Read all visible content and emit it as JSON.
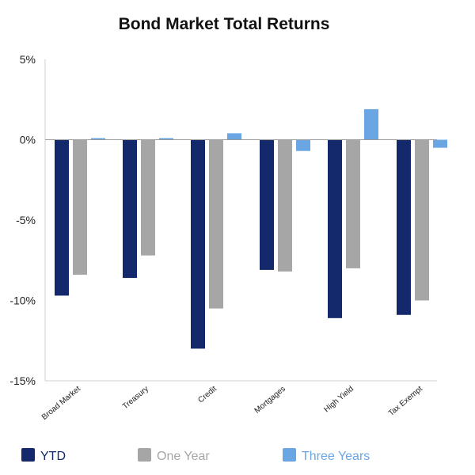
{
  "chart_data": {
    "type": "bar",
    "title": "Bond Market Total Returns",
    "xlabel": "",
    "ylabel": "",
    "ylim": [
      -15,
      5
    ],
    "yticks": [
      5,
      0,
      -5,
      -10,
      -15
    ],
    "ytick_labels": [
      "5%",
      "0%",
      "-5%",
      "-10%",
      "-15%"
    ],
    "categories": [
      "Broad Market",
      "Treasury",
      "Credit",
      "Mortgages",
      "High Yield",
      "Tax Exempt"
    ],
    "series": [
      {
        "name": "YTD",
        "color": "#13296b",
        "values": [
          -9.7,
          -8.6,
          -13.0,
          -8.1,
          -11.1,
          -10.9
        ]
      },
      {
        "name": "One Year",
        "color": "#a6a6a6",
        "values": [
          -8.4,
          -7.2,
          -10.5,
          -8.2,
          -8.0,
          -10.0
        ]
      },
      {
        "name": "Three Years",
        "color": "#6aa6e3",
        "values": [
          0.1,
          0.1,
          0.4,
          -0.7,
          1.9,
          -0.5
        ]
      }
    ],
    "grid": false,
    "legend_position": "bottom"
  }
}
